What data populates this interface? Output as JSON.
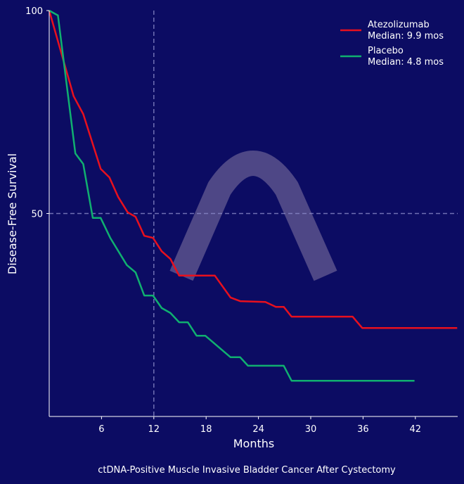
{
  "chart_data": {
    "type": "line",
    "title": "",
    "caption": "ctDNA-Positive Muscle Invasive Bladder Cancer After Cystectomy",
    "xlabel": "Months",
    "ylabel": "Disease-Free Survival",
    "xlim": [
      0,
      47
    ],
    "ylim": [
      0,
      100
    ],
    "xticks": [
      6,
      12,
      18,
      24,
      30,
      36,
      42
    ],
    "yticks": [
      50,
      100
    ],
    "reference_lines": {
      "x": 12,
      "y": 50,
      "style": "dashed"
    },
    "grid": false,
    "legend_position": "top-right",
    "watermark": "arch logo",
    "series": [
      {
        "name": "Atezolizumab",
        "legend_label": "Atezolizumab",
        "legend_sub": "Median: 9.9 mos",
        "color": "#e8101e",
        "points": [
          [
            0,
            100
          ],
          [
            2.8,
            78.9
          ],
          [
            3.9,
            74.5
          ],
          [
            5.9,
            61
          ],
          [
            6.9,
            58.9
          ],
          [
            7.9,
            54.1
          ],
          [
            9,
            50.3
          ],
          [
            9.9,
            49.2
          ],
          [
            10.9,
            44.5
          ],
          [
            11.9,
            44
          ],
          [
            12.9,
            40.7
          ],
          [
            13.9,
            38.8
          ],
          [
            14.9,
            34.7
          ],
          [
            19,
            34.7
          ],
          [
            20.8,
            29.3
          ],
          [
            21.9,
            28.4
          ],
          [
            24.8,
            28.2
          ],
          [
            26,
            27
          ],
          [
            26.9,
            27
          ],
          [
            27.8,
            24.6
          ],
          [
            34.8,
            24.6
          ],
          [
            35.9,
            21.8
          ],
          [
            46.8,
            21.8
          ]
        ]
      },
      {
        "name": "Placebo",
        "legend_label": "Placebo",
        "legend_sub": "Median: 4.8 mos",
        "color": "#10b070",
        "points": [
          [
            0,
            100
          ],
          [
            1,
            98.8
          ],
          [
            3,
            64.8
          ],
          [
            3.9,
            62.2
          ],
          [
            5,
            48.9
          ],
          [
            5.9,
            48.9
          ],
          [
            7,
            44
          ],
          [
            8.9,
            37.3
          ],
          [
            9.9,
            35.5
          ],
          [
            10.9,
            29.8
          ],
          [
            11.9,
            29.8
          ],
          [
            12.9,
            26.7
          ],
          [
            13.9,
            25.5
          ],
          [
            14.9,
            23.2
          ],
          [
            15.9,
            23.2
          ],
          [
            16.9,
            19.9
          ],
          [
            17.9,
            19.9
          ],
          [
            20.8,
            14.6
          ],
          [
            21.9,
            14.6
          ],
          [
            22.8,
            12.5
          ],
          [
            26.9,
            12.5
          ],
          [
            27.8,
            8.8
          ],
          [
            41.9,
            8.8
          ]
        ]
      }
    ]
  }
}
